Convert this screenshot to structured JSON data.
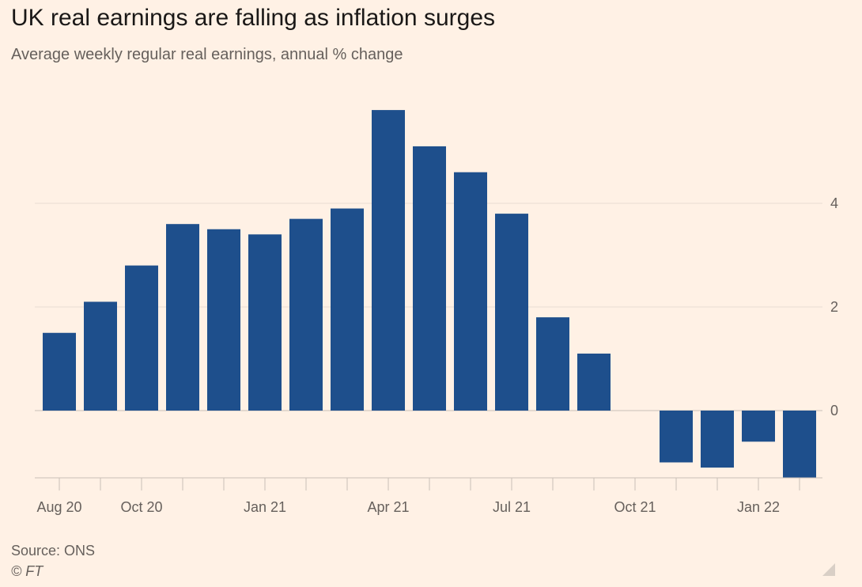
{
  "title": "UK real earnings are falling as inflation surges",
  "subtitle": "Average weekly regular real earnings, annual % change",
  "source": "Source: ONS",
  "copyright": "© FT",
  "colors": {
    "bar": "#1e4f8c",
    "background": "#fff1e5",
    "grid": "#e9ddd2",
    "zero_line": "#c9bfb7"
  },
  "chart_data": {
    "type": "bar",
    "categories": [
      "Aug 20",
      "Sep 20",
      "Oct 20",
      "Nov 20",
      "Dec 20",
      "Jan 21",
      "Feb 21",
      "Mar 21",
      "Apr 21",
      "May 21",
      "Jun 21",
      "Jul 21",
      "Aug 21",
      "Sep 21",
      "Oct 21",
      "Nov 21",
      "Dec 21",
      "Jan 22",
      "Feb 22"
    ],
    "values": [
      1.5,
      2.1,
      2.8,
      3.6,
      3.5,
      3.4,
      3.7,
      3.9,
      5.8,
      5.1,
      4.6,
      3.8,
      1.8,
      1.1,
      null,
      -1.0,
      -1.1,
      -0.6,
      -1.3
    ],
    "x_tick_labels": [
      "Aug 20",
      "Oct 20",
      "Jan 21",
      "Apr 21",
      "Jul 21",
      "Oct 21",
      "Jan 22"
    ],
    "y_ticks": [
      0,
      2,
      4
    ],
    "ylim": [
      -1.3,
      6.0
    ],
    "y_axis_side": "right",
    "grid": true,
    "legend": "none"
  }
}
